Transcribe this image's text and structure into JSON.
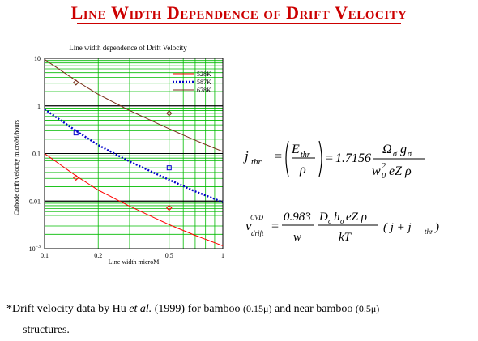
{
  "slide": {
    "title_words": [
      "Line",
      "Width",
      "Dependence",
      "of",
      "Drift",
      "Velocity"
    ]
  },
  "chart_data": {
    "type": "line",
    "title": "Line width dependence of Drift Velocity",
    "xlabel": "Line width  microM",
    "ylabel": "Cathode drift velocity microM/hours",
    "xscale": "log",
    "yscale": "log",
    "xlim": [
      0.1,
      1
    ],
    "ylim": [
      0.001,
      10
    ],
    "x_tick_labels": [
      "0.1",
      "0.2",
      "0.5",
      "1"
    ],
    "y_tick_labels": [
      "10",
      "1",
      "0.1",
      "0.01",
      "10^-3"
    ],
    "grid": true,
    "legend_position": "top-right",
    "series": [
      {
        "name": "528K",
        "color": "#ff0000",
        "style": "solid",
        "x": [
          0.1,
          0.15,
          0.2,
          0.3,
          0.5,
          0.7,
          1.0
        ],
        "y": [
          0.1,
          0.034,
          0.017,
          0.0078,
          0.0032,
          0.0019,
          0.00115
        ]
      },
      {
        "name": "587K",
        "color": "#0000cc",
        "style": "dotted",
        "x": [
          0.1,
          0.15,
          0.2,
          0.3,
          0.5,
          0.7,
          1.0
        ],
        "y": [
          0.85,
          0.3,
          0.15,
          0.068,
          0.028,
          0.016,
          0.0095
        ]
      },
      {
        "name": "678K",
        "color": "#7a2e1a",
        "style": "solid",
        "x": [
          0.1,
          0.15,
          0.2,
          0.3,
          0.5,
          0.7,
          1.0
        ],
        "y": [
          9.5,
          3.4,
          1.75,
          0.8,
          0.33,
          0.19,
          0.11
        ]
      }
    ],
    "data_points": [
      {
        "series": "528K",
        "marker": "diamond",
        "x": 0.15,
        "y": 0.031
      },
      {
        "series": "528K",
        "marker": "diamond",
        "x": 0.5,
        "y": 0.0072
      },
      {
        "series": "587K",
        "marker": "square",
        "x": 0.15,
        "y": 0.27
      },
      {
        "series": "587K",
        "marker": "square",
        "x": 0.5,
        "y": 0.05
      },
      {
        "series": "678K",
        "marker": "diamond",
        "x": 0.15,
        "y": 3.1
      },
      {
        "series": "678K",
        "marker": "diamond",
        "x": 0.5,
        "y": 0.7
      }
    ]
  },
  "equations": {
    "eq1": {
      "lhs": "j",
      "lhs_sub": "thr",
      "frac1_num": "E",
      "frac1_num_sub": "thr",
      "frac1_den": "ρ",
      "equals": "=",
      "coeff": "1.7156",
      "frac2_num": "Ω",
      "frac2_num_sub": "σ",
      "frac2_num2": "g",
      "frac2_num2_sub": "σ",
      "frac2_den": "w",
      "frac2_den_sub": "0",
      "frac2_den_sup": "2",
      "frac2_den_rest": "eZ ρ"
    },
    "eq2": {
      "lhs": "v",
      "lhs_sup": "CVD",
      "lhs_sub": "drift",
      "equals": "=",
      "frac1_num": "0.983",
      "frac1_den": "w",
      "frac2_num_a": "D",
      "frac2_num_a_sub": "σ",
      "frac2_num_b": "h",
      "frac2_num_b_sub": "σ",
      "frac2_num_c": "eZ ρ",
      "frac2_den": "kT",
      "tail": "( j + j",
      "tail_sub": "thr",
      "tail_end": ")"
    }
  },
  "footnote": {
    "star": "*",
    "text1": "Drift velocity data by Hu ",
    "et_al": "et al.",
    "text2": " (1999) for bamboo ",
    "paren1": "(0.15μ)",
    "text3": " and near bamboo ",
    "paren2": "(0.5μ)",
    "text4": "structures."
  }
}
